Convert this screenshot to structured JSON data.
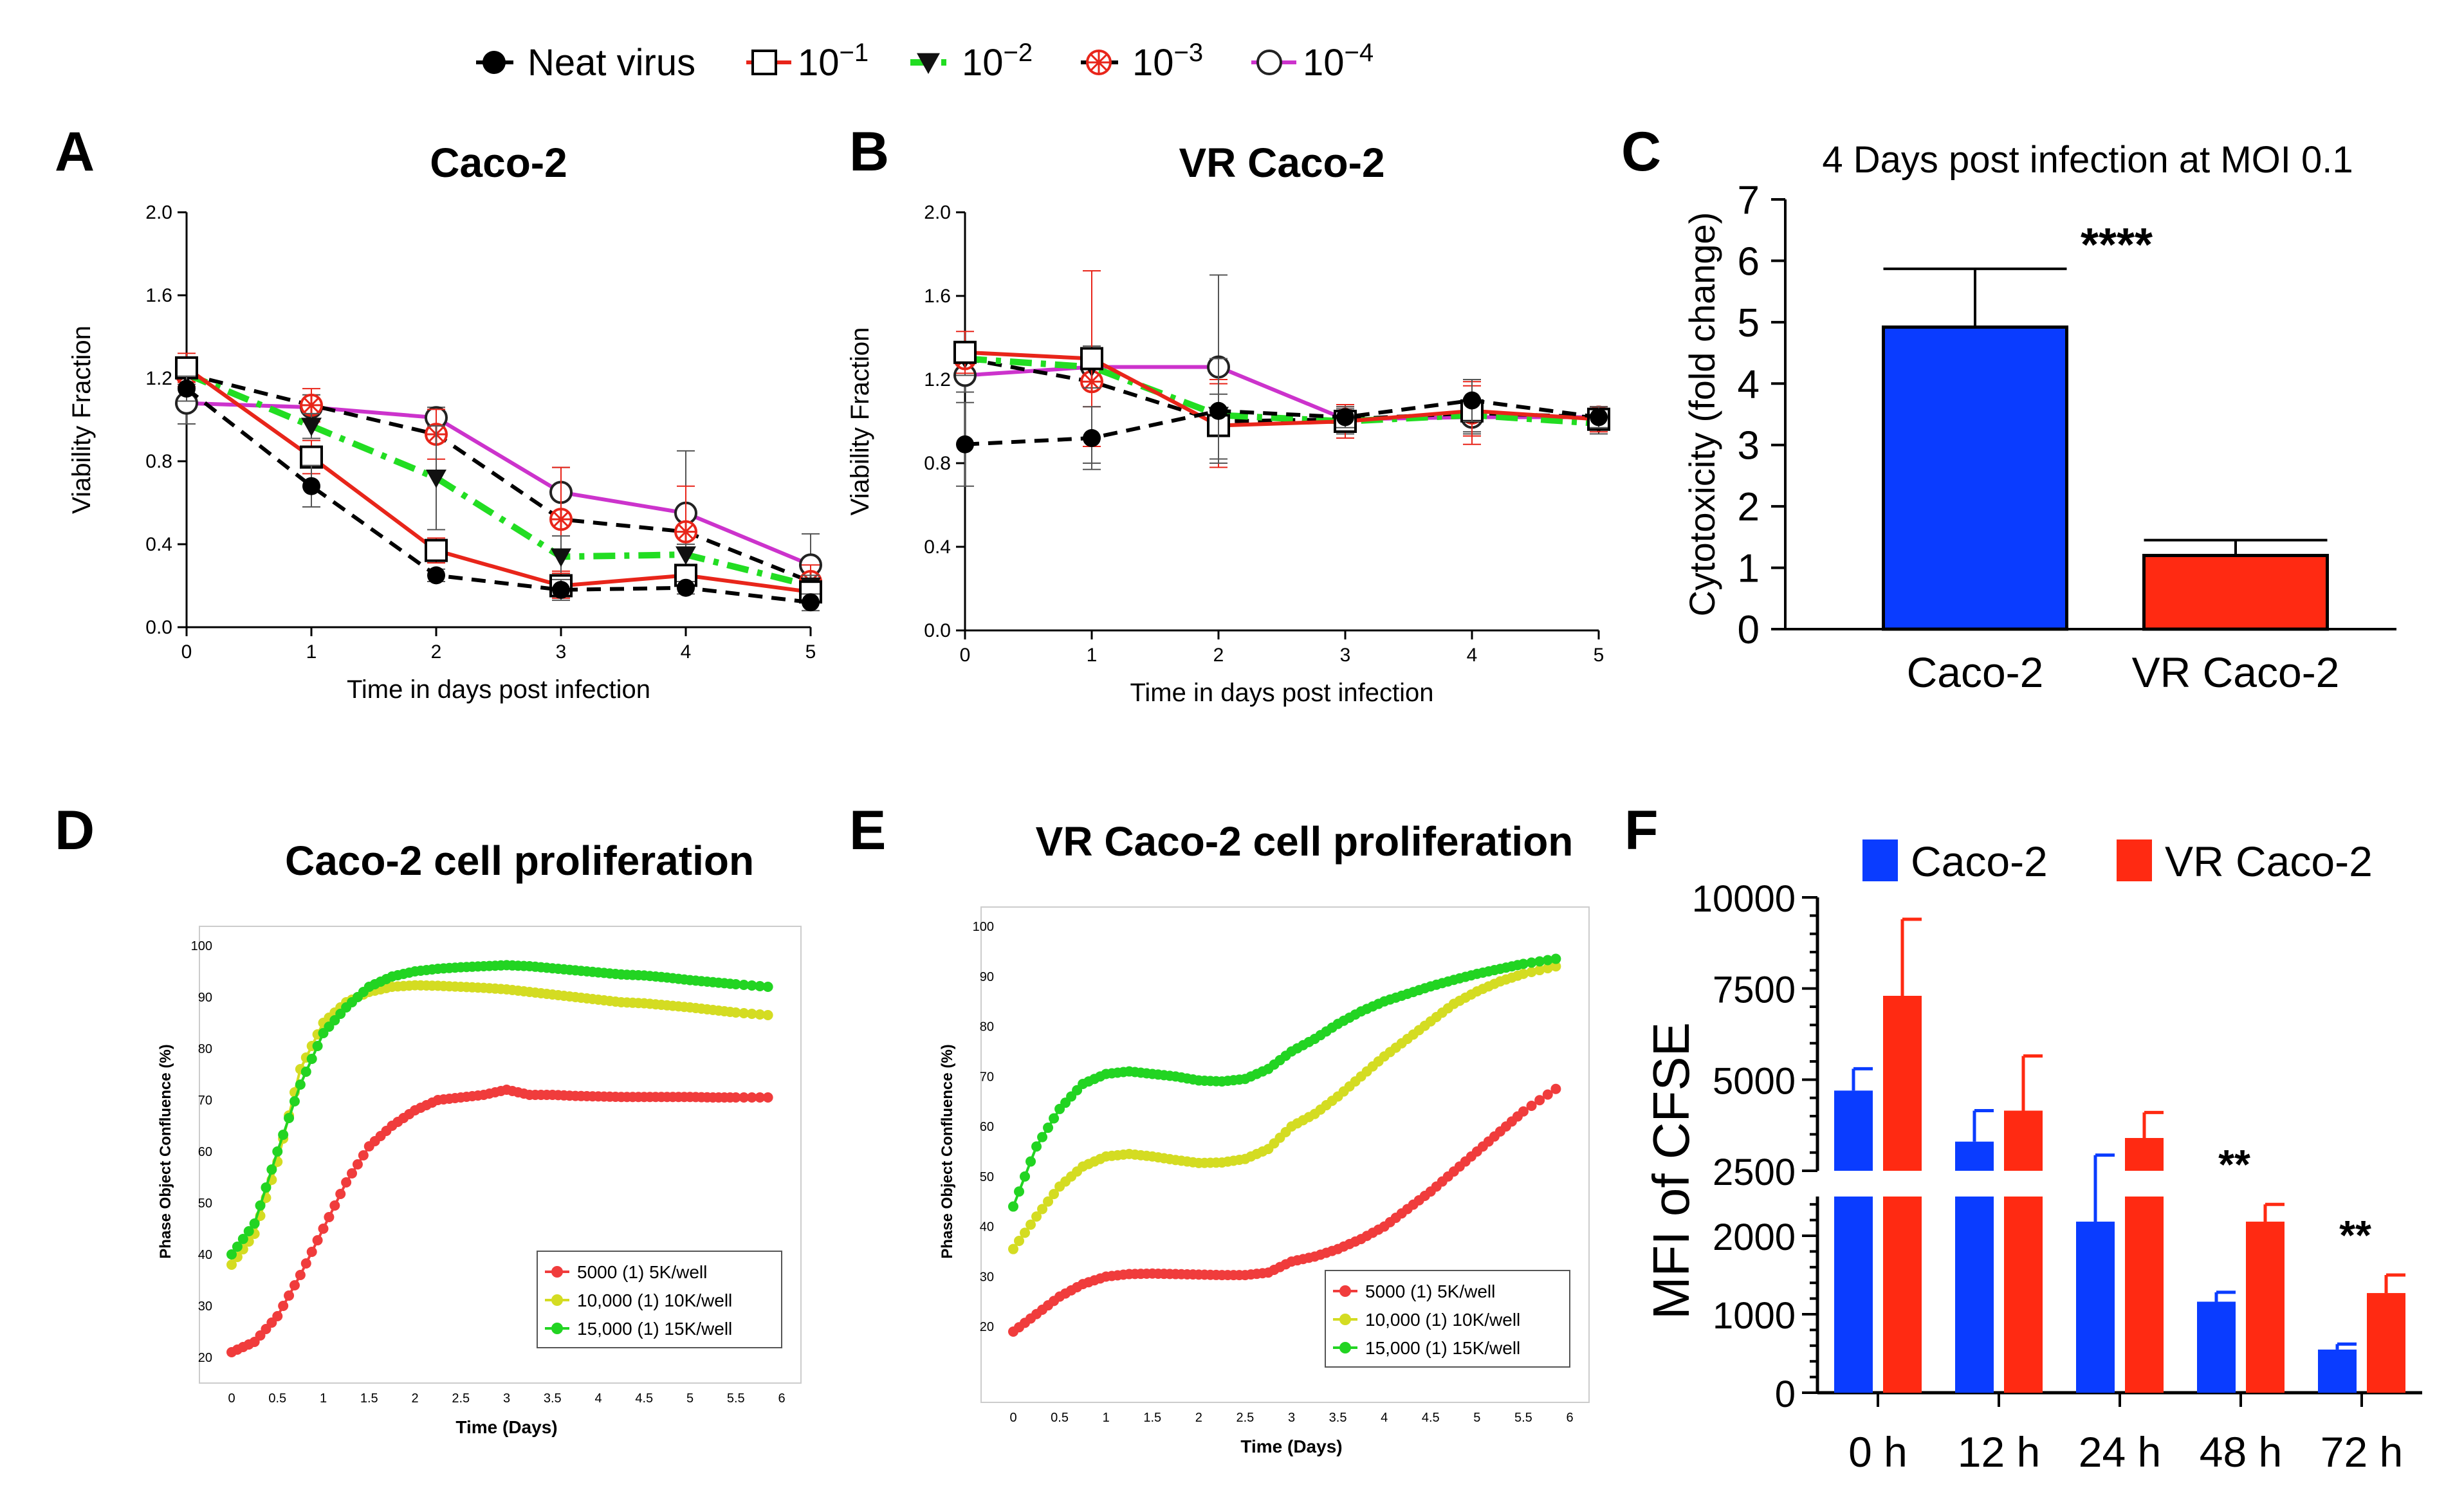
{
  "top_legend": [
    {
      "label": "Neat virus",
      "color": "#000000",
      "marker": "filled-circle",
      "dash": "dashed"
    },
    {
      "label": "10",
      "exp": "−1",
      "color": "#e8251a",
      "marker": "open-square",
      "dash": "solid"
    },
    {
      "label": "10",
      "exp": "−2",
      "color": "#22dd22",
      "marker": "down-triangle",
      "dash": "dashdot"
    },
    {
      "label": "10",
      "exp": "−3",
      "color": "#e8251a",
      "marker": "starred-circle",
      "dash": "dashed-black"
    },
    {
      "label": "10",
      "exp": "−4",
      "color": "#cc33cc",
      "marker": "open-circle",
      "dash": "solid"
    }
  ],
  "chart_data": [
    {
      "panel": "A",
      "type": "line",
      "title": "Caco-2",
      "xlabel": "Time in days post infection",
      "ylabel": "Viability Fraction",
      "xlim": [
        0,
        5
      ],
      "ylim": [
        0,
        2.0
      ],
      "xticks": [
        "0",
        "1",
        "2",
        "3",
        "4",
        "5"
      ],
      "yticks": [
        "0.0",
        "0.4",
        "0.8",
        "1.2",
        "1.6",
        "2.0"
      ],
      "x": [
        0,
        1,
        2,
        3,
        4,
        5
      ],
      "series": [
        {
          "name": "Neat virus",
          "values": [
            1.15,
            0.68,
            0.25,
            0.18,
            0.19,
            0.12
          ],
          "err": [
            0.06,
            0.1,
            0.03,
            0.05,
            0.03,
            0.04
          ]
        },
        {
          "name": "10^-1",
          "values": [
            1.25,
            0.82,
            0.37,
            0.2,
            0.25,
            0.17
          ],
          "err": [
            0.07,
            0.08,
            0.06,
            0.06,
            0.04,
            0.05
          ]
        },
        {
          "name": "10^-2",
          "values": [
            1.22,
            0.97,
            0.72,
            0.34,
            0.35,
            0.2
          ],
          "err": [
            0.05,
            0.06,
            0.25,
            0.1,
            0.05,
            0.05
          ]
        },
        {
          "name": "10^-3",
          "values": [
            1.22,
            1.07,
            0.93,
            0.52,
            0.46,
            0.22
          ],
          "err": [
            0.06,
            0.08,
            0.12,
            0.25,
            0.22,
            0.08
          ]
        },
        {
          "name": "10^-4",
          "values": [
            1.08,
            1.06,
            1.01,
            0.65,
            0.55,
            0.3
          ],
          "err": [
            0.1,
            0.06,
            0.05,
            0.12,
            0.3,
            0.15
          ]
        }
      ]
    },
    {
      "panel": "B",
      "type": "line",
      "title": "VR Caco-2",
      "xlabel": "Time in days post infection",
      "ylabel": "Viability Fraction",
      "xlim": [
        0,
        5
      ],
      "ylim": [
        0,
        2.0
      ],
      "xticks": [
        "0",
        "1",
        "2",
        "3",
        "4",
        "5"
      ],
      "yticks": [
        "0.0",
        "0.4",
        "0.8",
        "1.2",
        "1.6",
        "2.0"
      ],
      "x": [
        0,
        1,
        2,
        3,
        4,
        5
      ],
      "series": [
        {
          "name": "Neat virus",
          "values": [
            0.89,
            0.92,
            1.05,
            1.02,
            1.1,
            1.02
          ],
          "err": [
            0.2,
            0.15,
            0.25,
            0.05,
            0.1,
            0.05
          ]
        },
        {
          "name": "10^-1",
          "values": [
            1.33,
            1.3,
            0.98,
            1.0,
            1.05,
            1.01
          ],
          "err": [
            0.1,
            0.42,
            0.2,
            0.08,
            0.12,
            0.06
          ]
        },
        {
          "name": "10^-2",
          "values": [
            1.3,
            1.26,
            1.03,
            1.0,
            1.03,
            0.99
          ],
          "err": [
            0.08,
            0.1,
            0.1,
            0.06,
            0.08,
            0.05
          ]
        },
        {
          "name": "10^-3",
          "values": [
            1.3,
            1.19,
            1.0,
            1.01,
            1.04,
            1.02
          ],
          "err": [
            0.08,
            0.12,
            0.2,
            0.06,
            0.15,
            0.05
          ]
        },
        {
          "name": "10^-4",
          "values": [
            1.22,
            1.26,
            1.26,
            1.01,
            1.02,
            1.02
          ],
          "err": [
            0.08,
            0.46,
            0.44,
            0.05,
            0.08,
            0.05
          ]
        }
      ]
    },
    {
      "panel": "C",
      "type": "bar",
      "title": "4 Days post infection at MOI 0.1",
      "ylabel": "Cytotoxicity (fold change)",
      "ylim": [
        0,
        7
      ],
      "yticks": [
        "0",
        "1",
        "2",
        "3",
        "4",
        "5",
        "6",
        "7"
      ],
      "categories": [
        "Caco-2",
        "VR Caco-2"
      ],
      "values": [
        4.92,
        1.2
      ],
      "err": [
        0.95,
        0.25
      ],
      "colors": [
        "#0a3cff",
        "#ff2a12"
      ],
      "annotation": "****"
    },
    {
      "panel": "D",
      "type": "line",
      "title": "Caco-2 cell proliferation",
      "xlabel": "Time (Days)",
      "ylabel": "Phase Object Confluence (%)",
      "xlim": [
        0,
        6
      ],
      "ylim": [
        20,
        100
      ],
      "xticks": [
        "0",
        "0.5",
        "1",
        "1.5",
        "2",
        "2.5",
        "3",
        "3.5",
        "4",
        "4.5",
        "5",
        "5.5",
        "6"
      ],
      "yticks": [
        "20",
        "30",
        "40",
        "50",
        "60",
        "70",
        "80",
        "90",
        "100"
      ],
      "x": [
        0,
        0.25,
        0.5,
        0.75,
        1,
        1.25,
        1.5,
        1.75,
        2,
        2.25,
        2.5,
        2.75,
        3,
        3.25,
        3.5,
        3.75,
        4,
        4.25,
        4.5,
        4.75,
        5,
        5.25,
        5.5,
        5.85
      ],
      "series": [
        {
          "name": "5000 (1) 5K/well",
          "color": "#f03c3c",
          "values": [
            21,
            23,
            28,
            36,
            45,
            54,
            61,
            65,
            68,
            70,
            70.5,
            71,
            72,
            71,
            71,
            70.8,
            70.7,
            70.6,
            70.6,
            70.6,
            70.6,
            70.5,
            70.5,
            70.5
          ]
        },
        {
          "name": "10,000 (1) 10K/well",
          "color": "#d4dc22",
          "values": [
            38,
            44,
            58,
            76,
            85,
            89,
            91,
            92,
            92.3,
            92.2,
            92,
            91.8,
            91.5,
            91,
            90.5,
            90,
            89.5,
            89,
            88.8,
            88.4,
            88,
            87.5,
            87,
            86.5
          ]
        },
        {
          "name": "15,000 (1) 15K/well",
          "color": "#22d422",
          "values": [
            40,
            46,
            60,
            73,
            83,
            88,
            92,
            94,
            95,
            95.5,
            95.8,
            96,
            96.2,
            96,
            95.6,
            95.2,
            94.8,
            94.4,
            94.2,
            93.8,
            93.3,
            92.9,
            92.5,
            92
          ]
        }
      ]
    },
    {
      "panel": "E",
      "type": "line",
      "title": "VR Caco-2 cell proliferation",
      "xlabel": "Time (Days)",
      "ylabel": "Phase Object Confluence (%)",
      "xlim": [
        0,
        6
      ],
      "ylim": [
        10,
        100
      ],
      "xticks": [
        "0",
        "0.5",
        "1",
        "1.5",
        "2",
        "2.5",
        "3",
        "3.5",
        "4",
        "4.5",
        "5",
        "5.5",
        "6"
      ],
      "yticks": [
        "20",
        "30",
        "40",
        "50",
        "60",
        "70",
        "80",
        "90",
        "100"
      ],
      "x": [
        0,
        0.25,
        0.5,
        0.75,
        1,
        1.25,
        1.5,
        1.75,
        2,
        2.25,
        2.5,
        2.75,
        3,
        3.25,
        3.5,
        3.75,
        4,
        4.25,
        4.5,
        4.75,
        5,
        5.25,
        5.5,
        5.85
      ],
      "series": [
        {
          "name": "5000 (1) 5K/well",
          "color": "#f03c3c",
          "values": [
            19,
            22.5,
            26,
            28.5,
            30,
            30.5,
            30.6,
            30.5,
            30.4,
            30.3,
            30.3,
            30.8,
            33,
            34,
            35.5,
            37.5,
            40,
            43.5,
            47,
            51,
            55,
            59,
            63,
            67.5
          ]
        },
        {
          "name": "10,000 (1) 10K/well",
          "color": "#d4dc22",
          "values": [
            35.5,
            42,
            48,
            52,
            54,
            54.5,
            54,
            53.3,
            52.7,
            52.8,
            53.5,
            55.5,
            60,
            62.5,
            66,
            70,
            74,
            77.5,
            81,
            84.5,
            87,
            89,
            90.5,
            92
          ]
        },
        {
          "name": "15,000 (1) 15K/well",
          "color": "#22d422",
          "values": [
            44,
            56,
            63.5,
            68.5,
            70.5,
            71,
            70.5,
            70,
            69.2,
            69,
            69.5,
            71.5,
            75,
            77.5,
            80.5,
            83,
            85,
            86.5,
            88,
            89.3,
            90.5,
            91.5,
            92.5,
            93.5
          ]
        }
      ]
    },
    {
      "panel": "F",
      "type": "bar",
      "ylabel": "MFI of CFSE",
      "categories": [
        "0 h",
        "12 h",
        "24 h",
        "48 h",
        "72 h"
      ],
      "yticks_top": [
        "2500",
        "5000",
        "7500",
        "10000"
      ],
      "yticks_bottom": [
        "0",
        "1000",
        "2000"
      ],
      "series": [
        {
          "name": "Caco-2",
          "color": "#0a3cff",
          "values": [
            4700,
            3300,
            2180,
            1160,
            550
          ],
          "err": [
            600,
            850,
            750,
            120,
            70
          ]
        },
        {
          "name": "VR Caco-2",
          "color": "#ff2a12",
          "values": [
            7300,
            4150,
            3400,
            2180,
            1270
          ],
          "err": [
            2100,
            1500,
            700,
            220,
            230
          ]
        }
      ],
      "annotations": [
        {
          "category": "48 h",
          "text": "**"
        },
        {
          "category": "72 h",
          "text": "**"
        }
      ]
    }
  ],
  "panel_letters": [
    "A",
    "B",
    "C",
    "D",
    "E",
    "F"
  ]
}
